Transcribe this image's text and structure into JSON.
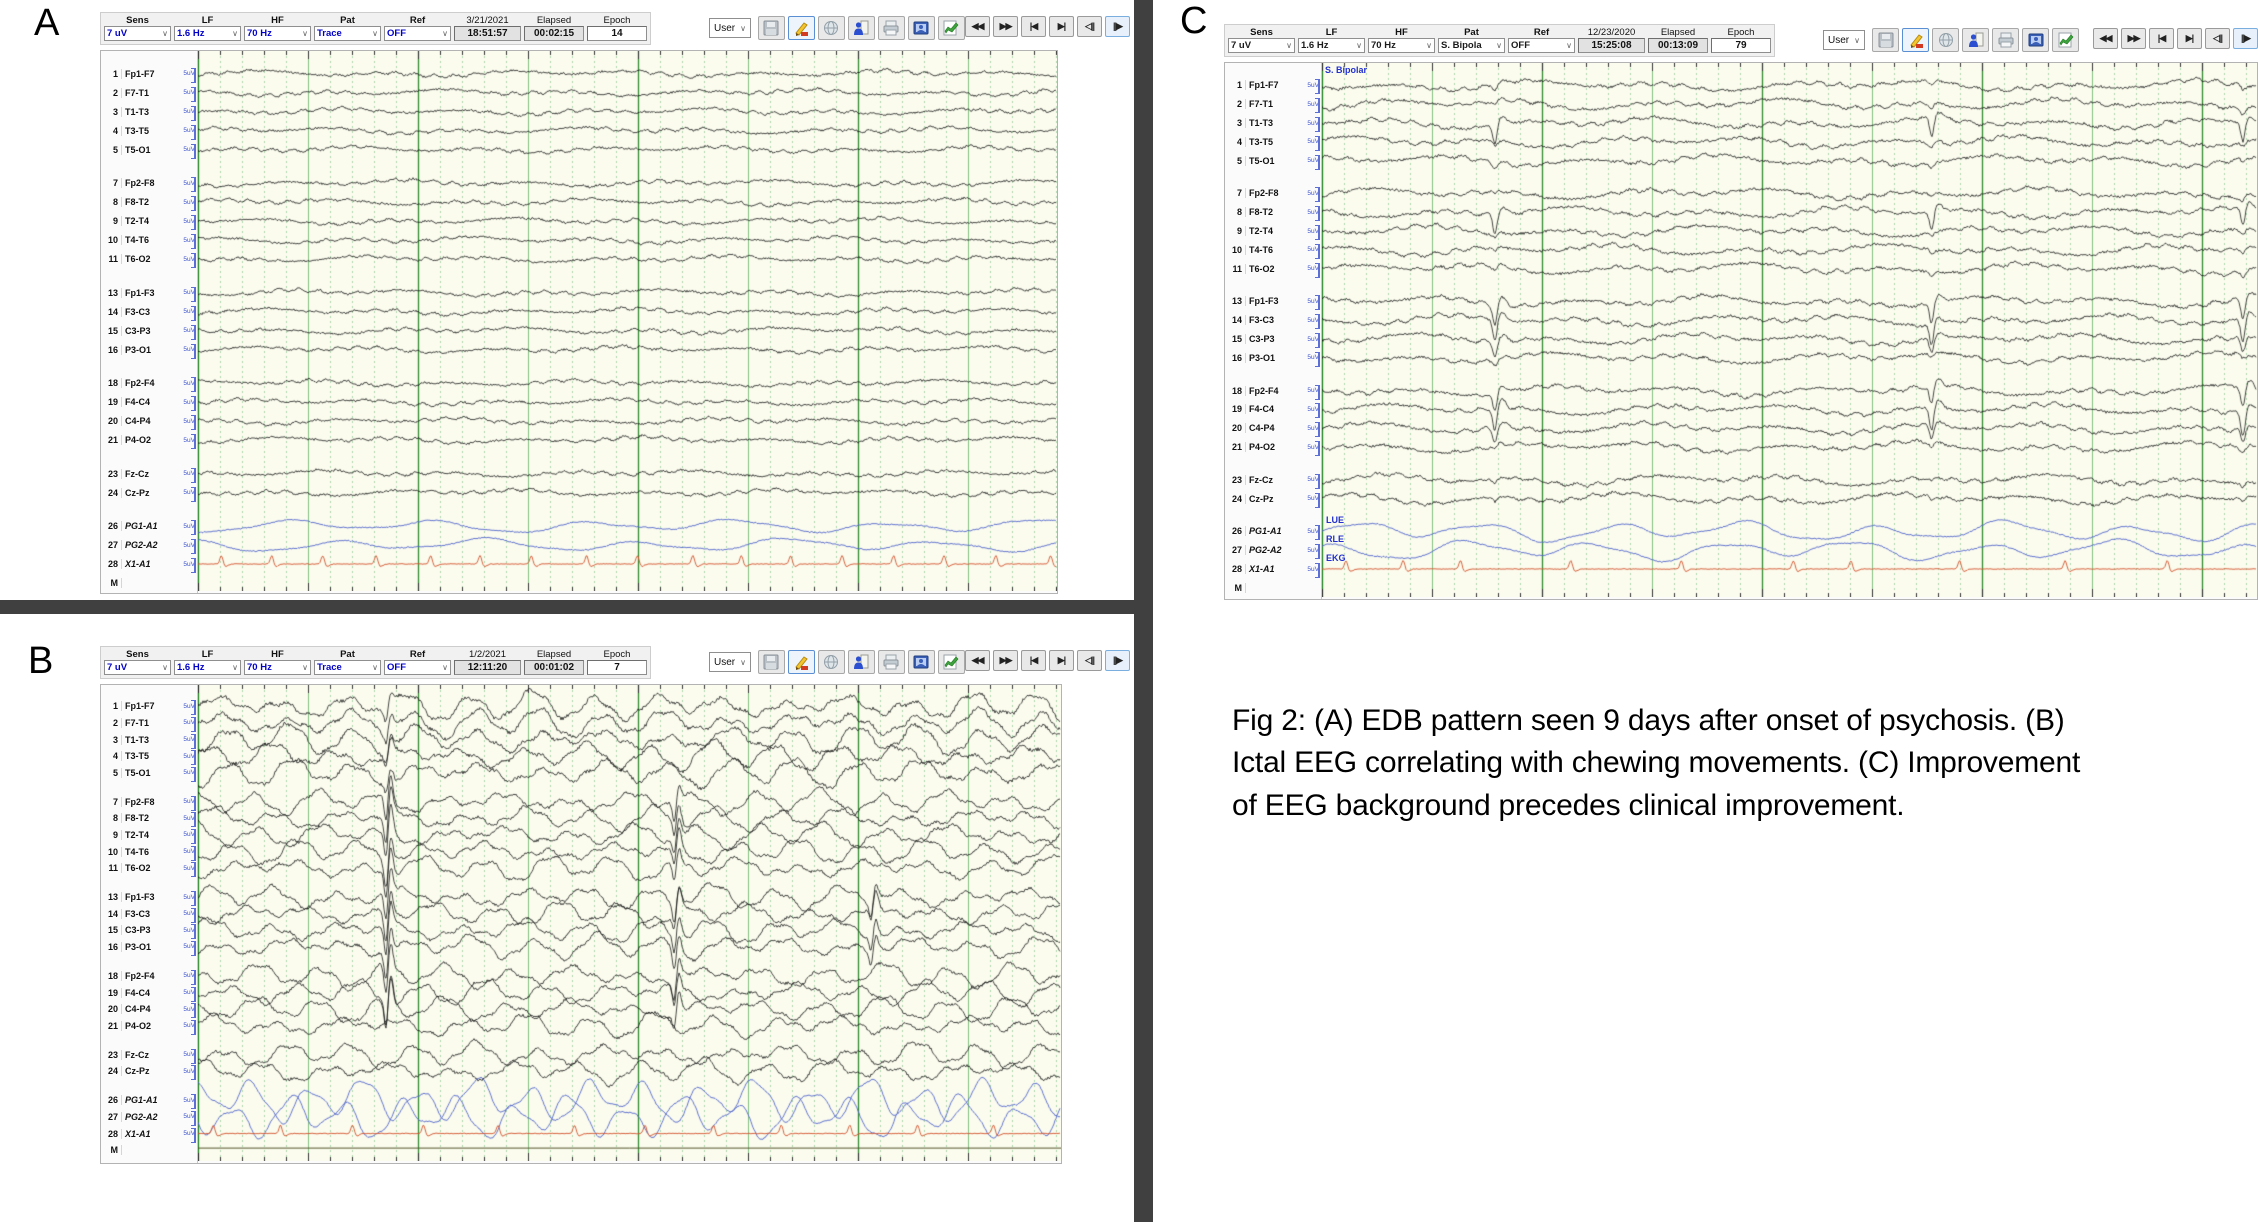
{
  "figure": {
    "caption": "Fig 2: (A) EDB pattern seen 9 days after onset of psychosis. (B) Ictal EEG correlating with chewing movements. (C) Improvement of EEG background precedes clinical improvement."
  },
  "toolbar_labels": {
    "sens": "Sens",
    "lf": "LF",
    "hf": "HF",
    "pat": "Pat",
    "ref": "Ref",
    "elapsed": "Elapsed",
    "epoch": "Epoch"
  },
  "chrome": {
    "user": "User",
    "dropdown_arrow": "∨",
    "icon_names": [
      "save",
      "annotate",
      "globe",
      "patient",
      "print",
      "media",
      "trend"
    ],
    "nav": [
      "◀◀",
      "▶▶",
      "|◀",
      "▶|",
      "◁||",
      "||▶"
    ]
  },
  "scale_label": "5uV",
  "channels": [
    {
      "num": "1",
      "name": "Fp1-F7"
    },
    {
      "num": "2",
      "name": "F7-T1"
    },
    {
      "num": "3",
      "name": "T1-T3"
    },
    {
      "num": "4",
      "name": "T3-T5"
    },
    {
      "num": "5",
      "name": "T5-O1"
    },
    {
      "spacer": true
    },
    {
      "num": "7",
      "name": "Fp2-F8"
    },
    {
      "num": "8",
      "name": "F8-T2"
    },
    {
      "num": "9",
      "name": "T2-T4"
    },
    {
      "num": "10",
      "name": "T4-T6"
    },
    {
      "num": "11",
      "name": "T6-O2"
    },
    {
      "spacer": true
    },
    {
      "num": "13",
      "name": "Fp1-F3"
    },
    {
      "num": "14",
      "name": "F3-C3"
    },
    {
      "num": "15",
      "name": "C3-P3"
    },
    {
      "num": "16",
      "name": "P3-O1"
    },
    {
      "spacer": true
    },
    {
      "num": "18",
      "name": "Fp2-F4"
    },
    {
      "num": "19",
      "name": "F4-C4"
    },
    {
      "num": "20",
      "name": "C4-P4"
    },
    {
      "num": "21",
      "name": "P4-O2"
    },
    {
      "spacer": true
    },
    {
      "num": "23",
      "name": "Fz-Cz"
    },
    {
      "num": "24",
      "name": "Cz-Pz"
    },
    {
      "spacer": true
    },
    {
      "num": "26",
      "name": "PG1-A1",
      "italic": true,
      "type": "eog"
    },
    {
      "num": "27",
      "name": "PG2-A2",
      "italic": true,
      "type": "eog"
    },
    {
      "num": "28",
      "name": "X1-A1",
      "italic": true,
      "type": "ekg"
    },
    {
      "num": "M",
      "name": "",
      "noscale": true,
      "type": "marker"
    }
  ],
  "panels": [
    {
      "label": "A",
      "value_color": "#0000c8",
      "toolbar": {
        "sens": "7 uV",
        "lf": "1.6 Hz",
        "hf": "70 Hz",
        "pat": "Trace",
        "ref": "OFF",
        "date": "3/21/2021",
        "time": "18:51:57",
        "elapsed": "00:02:15",
        "epoch": "14"
      }
    },
    {
      "label": "B",
      "value_color": "#0000c8",
      "toolbar": {
        "sens": "7 uV",
        "lf": "1.6 Hz",
        "hf": "70 Hz",
        "pat": "Trace",
        "ref": "OFF",
        "date": "1/2/2021",
        "time": "12:11:20",
        "elapsed": "00:01:02",
        "epoch": "7"
      }
    },
    {
      "label": "C",
      "value_color": "#1a1a1a",
      "montage_note": "S. Bipolar",
      "aux_labels": [
        "LUE",
        "RLE",
        "EKG"
      ],
      "toolbar": {
        "sens": "7 uV",
        "lf": "1.6 Hz",
        "hf": "70 Hz",
        "pat": "S. Bipola",
        "ref": "OFF",
        "date": "12/23/2020",
        "time": "15:25:08",
        "elapsed": "00:13:09",
        "epoch": "79"
      }
    }
  ]
}
